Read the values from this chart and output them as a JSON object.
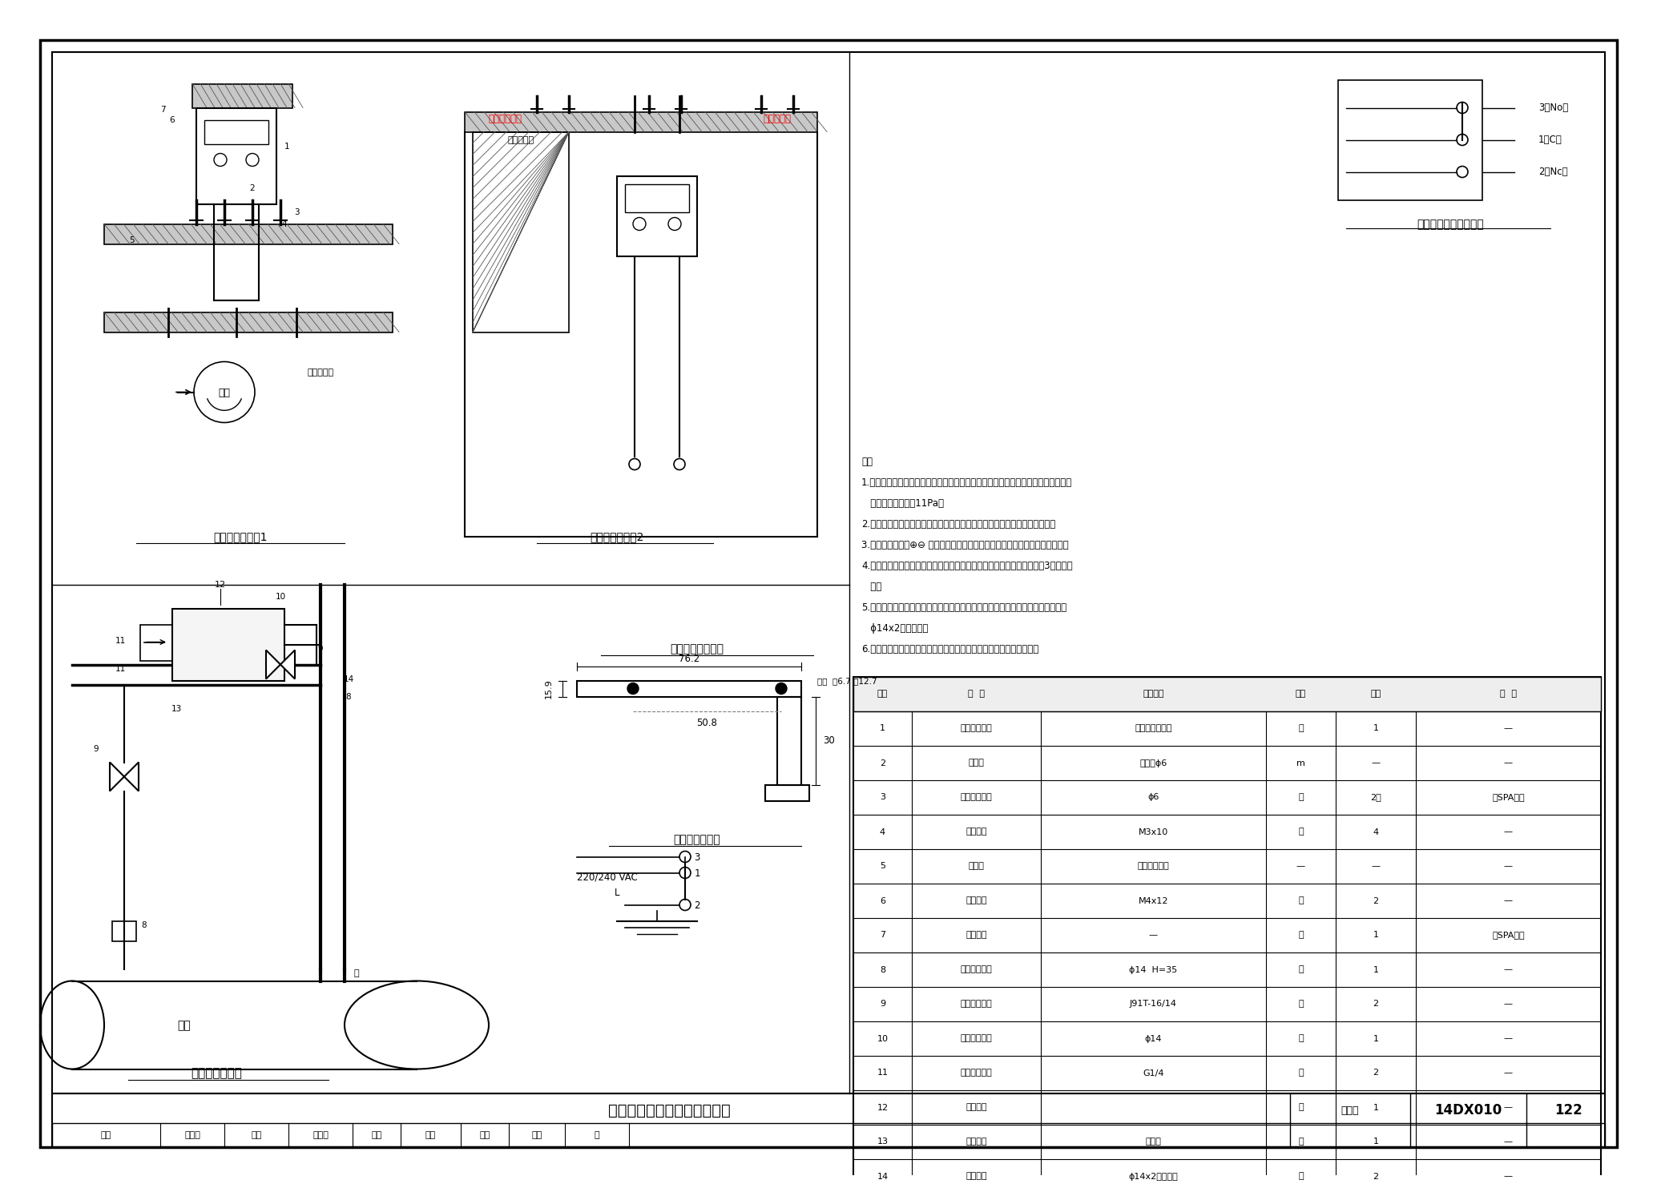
{
  "bg_color": "#ffffff",
  "title_main": "压差传感器、压力开关安装图",
  "drawing_num": "14DX010",
  "page_num": "122",
  "scheme1_title": "压差传感器方案1",
  "scheme2_title": "压差传感器方案2",
  "switch_diagram_title": "压差传感器开关接线图",
  "install_title": "压力开关安装图",
  "bracket_title": "压力开关安装支架",
  "wiring_title": "压力开关接线图",
  "notes": [
    "注：",
    "1.空气压差开关取样口宜垂直安装，如果水平安装，则动作压力与复位压力相比所显",
    "   示的标定值偏差为11Pa。",
    "2.空气压差开关导气塑料管长度应留有一定弧度，防止弯曲时堵塞空气流通。",
    "3.将空气压差开关⊕⊖ 取样口，任意一端向大气敞开，则可用于监测绝对压力。",
    "4.压力开关焊接终端接头安装在管道直线段上，离阀门和弯头距离不小于3倍管道直",
    "   径。",
    "5.除与管道焊接和与传感器螺纹连接外，压力开关全都采用卡套连接，连接钢管用",
    "   ϕ14x2无缝钢管。",
    "6.连接钢管处须周支撑固定，压力开关传感器安装在无振动的支柒上。"
  ],
  "table_col_widths": [
    55,
    120,
    210,
    65,
    75,
    170
  ],
  "table_headers": [
    "编号",
    "名  称",
    "型号规格",
    "单位",
    "数量",
    "备  注"
  ],
  "table_rows": [
    [
      "1",
      "空气压差开关",
      "由工程设计确定",
      "套",
      "1",
      "—"
    ],
    [
      "2",
      "导气管",
      "塑料管ϕ6",
      "m",
      "—",
      "—"
    ],
    [
      "3",
      "管道衬垫管管",
      "ϕ6",
      "套",
      "2套",
      "随SPA供货"
    ],
    [
      "4",
      "自攻螺丝",
      "M3x10",
      "个",
      "4",
      "—"
    ],
    [
      "5",
      "密封胶",
      "建筑用密封胶",
      "—",
      "—",
      "—"
    ],
    [
      "6",
      "自攻螺丝",
      "M4x12",
      "个",
      "2",
      "—"
    ],
    [
      "7",
      "安装支架",
      "—",
      "套",
      "1",
      "随SPA供货"
    ],
    [
      "8",
      "焊接终端接头",
      "ϕ14  H=35",
      "个",
      "1",
      "—"
    ],
    [
      "9",
      "卡套式截止阀",
      "J91T-16/14",
      "个",
      "2",
      "—"
    ],
    [
      "10",
      "等通中间接头",
      "ϕ14",
      "个",
      "1",
      "—"
    ],
    [
      "11",
      "直通终端接头",
      "G1/4",
      "个",
      "2",
      "—"
    ],
    [
      "12",
      "压力开关",
      "",
      "套",
      "1",
      "—"
    ],
    [
      "13",
      "安装支架",
      "配套件",
      "个",
      "1",
      "—"
    ],
    [
      "14",
      "连接钢管",
      "ϕ14x2无缝钢管",
      "根",
      "2",
      "—"
    ]
  ],
  "footer_labels": [
    "审核",
    "王向东",
    "校对",
    "陈建华",
    "制图",
    "设计",
    "苦展",
    "范发",
    "页"
  ],
  "dim_76": "76.2",
  "dim_50": "50.8",
  "dim_hole": "两孔  宽6.7 长12.7",
  "dim_159": "15.9",
  "dim_30": "30",
  "vac_label": "220/240 VAC"
}
